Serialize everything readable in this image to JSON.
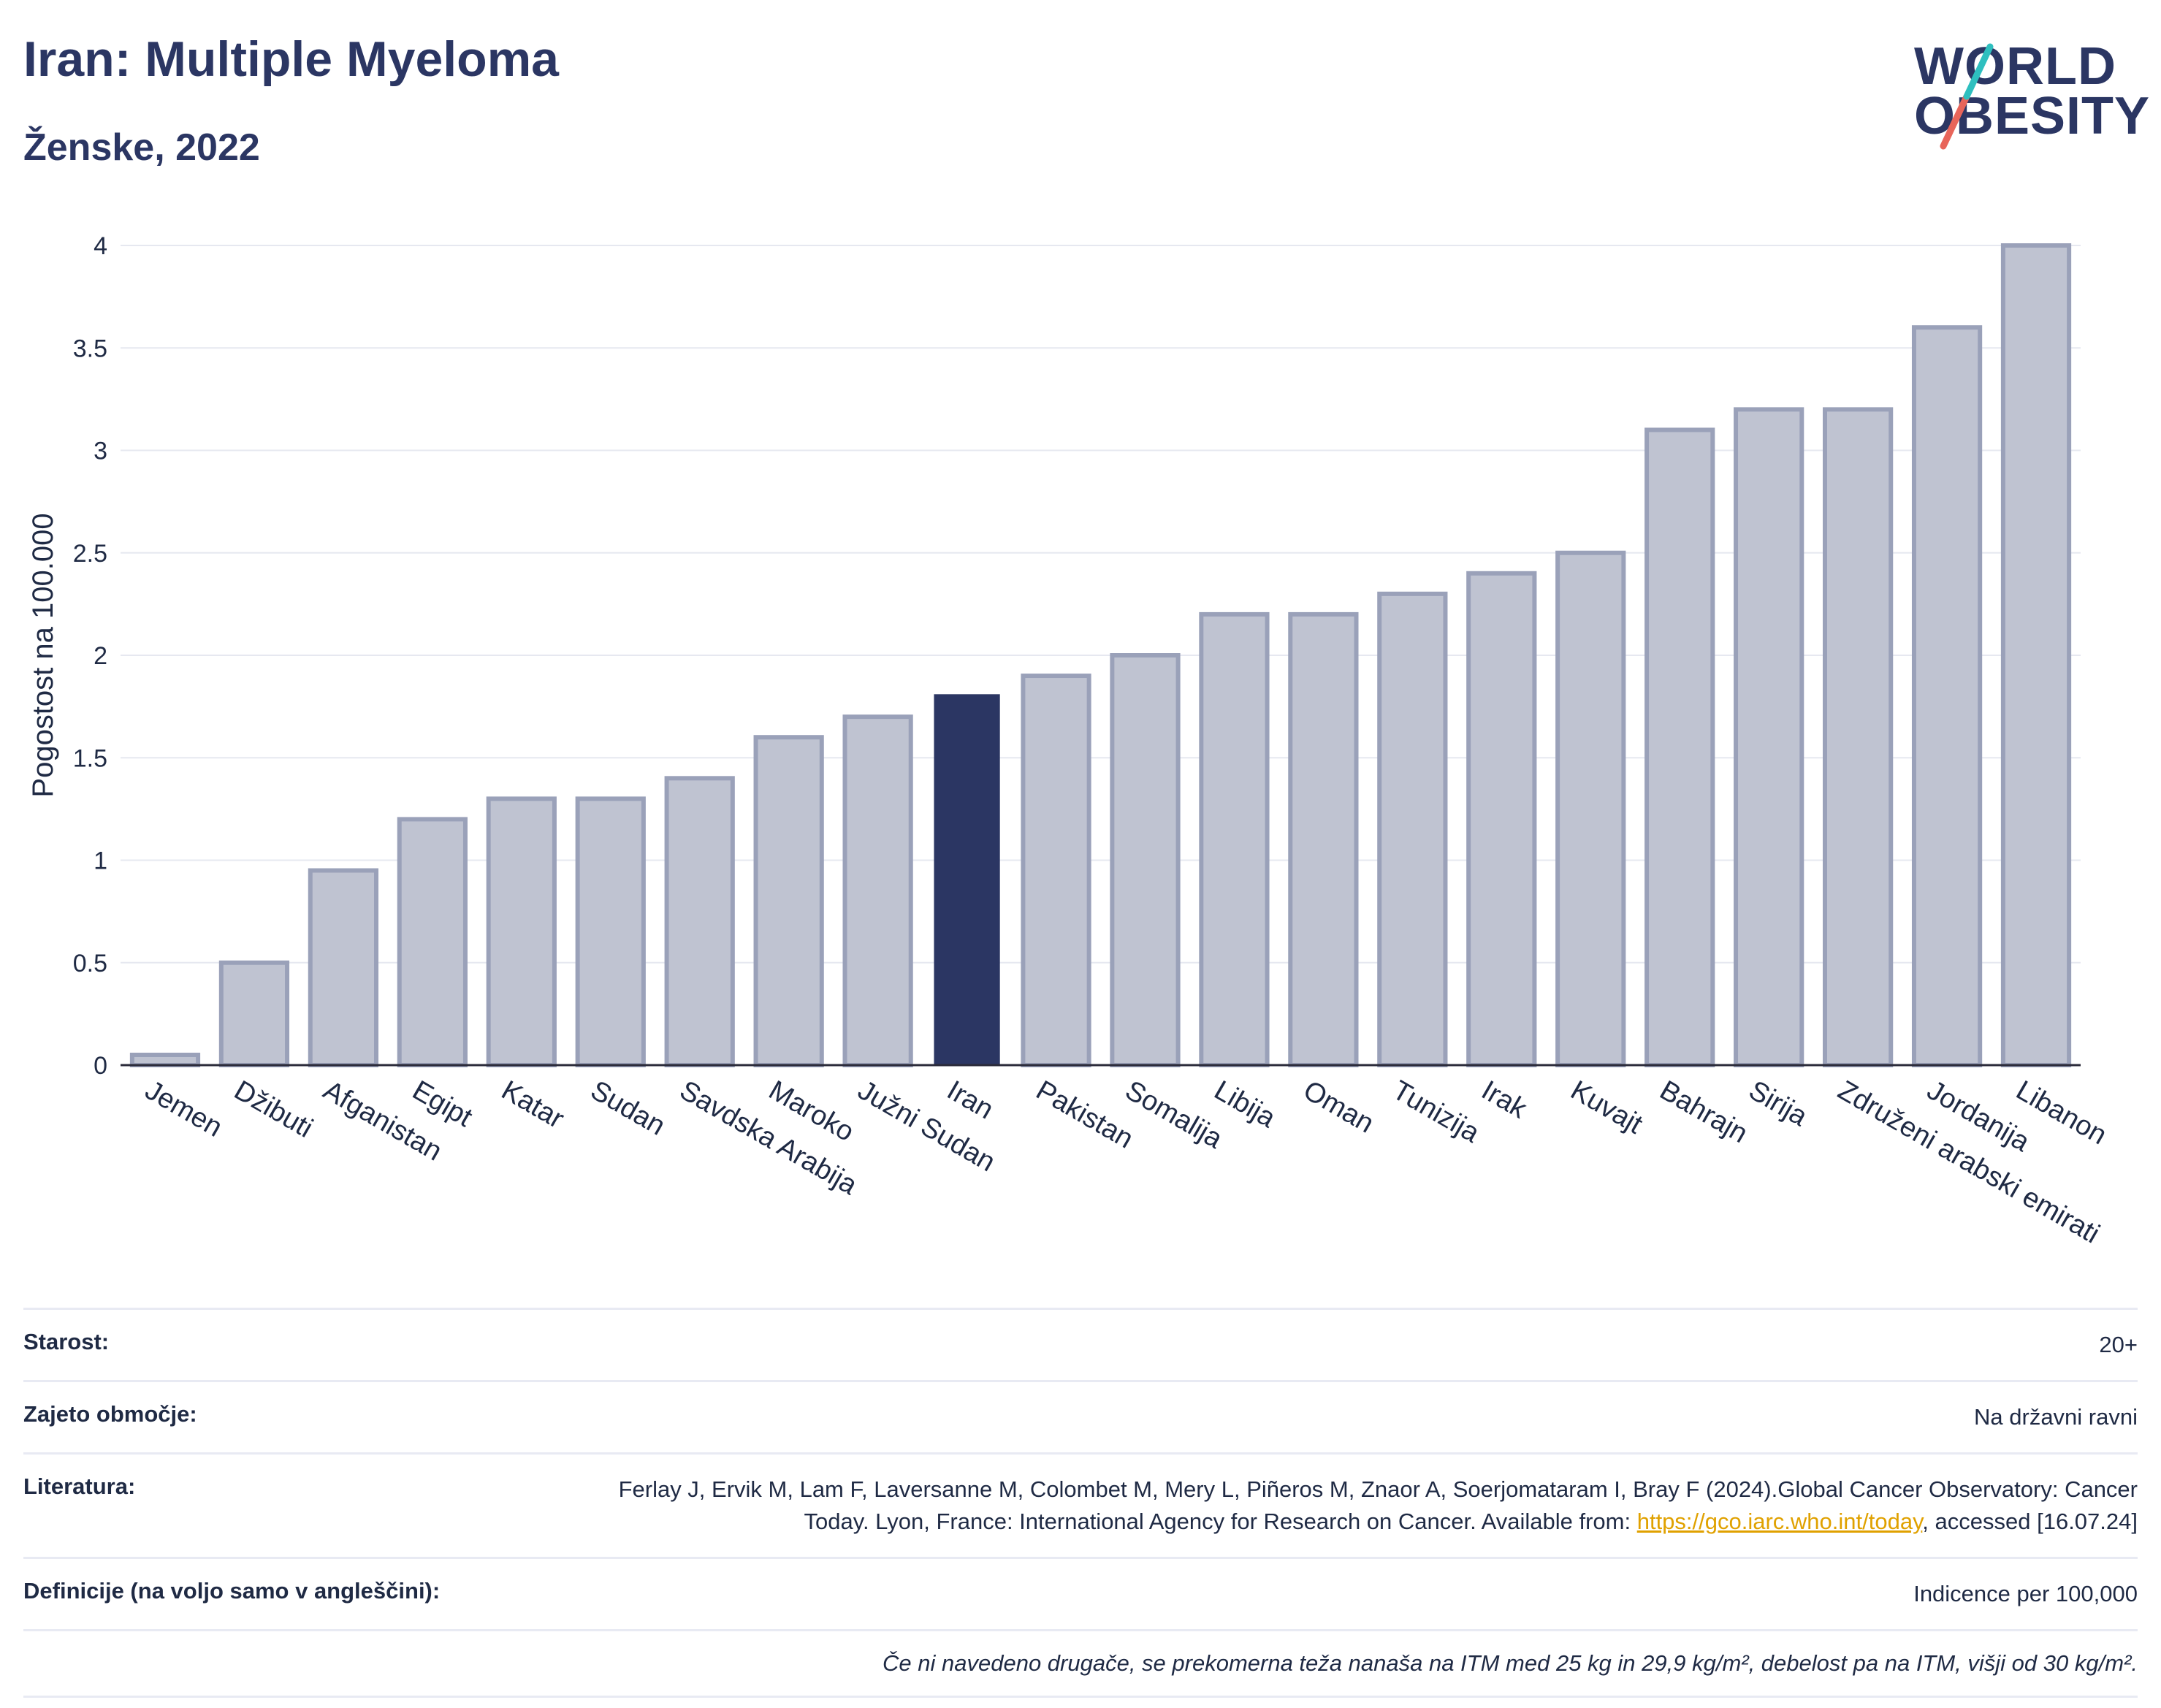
{
  "header": {
    "title": "Iran: Multiple Myeloma",
    "subtitle": "Ženske, 2022"
  },
  "logo": {
    "line1": "WORLD",
    "line2": "OBESITY",
    "colors": {
      "text": "#2b3663",
      "slash_top": "#2ebfbf",
      "slash_bottom": "#e8655a"
    }
  },
  "chart_data": {
    "type": "bar",
    "ylabel": "Pogostost na 100.000",
    "ylim": [
      0,
      4
    ],
    "yticks": [
      0,
      0.5,
      1,
      1.5,
      2,
      2.5,
      3,
      3.5,
      4
    ],
    "grid": true,
    "categories": [
      "Jemen",
      "Džibuti",
      "Afganistan",
      "Egipt",
      "Katar",
      "Sudan",
      "Savdska Arabija",
      "Maroko",
      "Južni Sudan",
      "Iran",
      "Pakistan",
      "Somalija",
      "Libija",
      "Oman",
      "Tunizija",
      "Irak",
      "Kuvajt",
      "Bahrajn",
      "Sirija",
      "Združeni arabski emirati",
      "Jordanija",
      "Libanon"
    ],
    "values": [
      0.05,
      0.5,
      0.95,
      1.2,
      1.3,
      1.3,
      1.4,
      1.6,
      1.7,
      1.81,
      1.9,
      2.0,
      2.2,
      2.2,
      2.3,
      2.4,
      2.5,
      3.1,
      3.2,
      3.2,
      3.6,
      4.0
    ],
    "highlight": "Iran",
    "colors": {
      "bar": "#bfc3d1",
      "bar_border": "#9aa1b9",
      "highlight": "#2b3663"
    }
  },
  "meta": {
    "rows": [
      {
        "label": "Starost:",
        "value": "20+"
      },
      {
        "label": "Zajeto območje:",
        "value": "Na državni ravni"
      },
      {
        "label": "Literatura:",
        "value_before": "Ferlay J, Ervik M, Lam F, Laversanne M, Colombet M, Mery L, Piñeros M, Znaor A, Soerjomataram I, Bray F (2024).Global Cancer Observatory: Cancer Today. Lyon, France: International Agency for Research on Cancer. Available from: ",
        "link": "https://gco.iarc.who.int/today",
        "value_after": ", accessed [16.07.24]"
      },
      {
        "label": "Definicije (na voljo samo v angleščini):",
        "value": "Indicence per 100,000"
      }
    ],
    "note": "Če ni navedeno drugače, se prekomerna teža nanaša na ITM med 25 kg in 29,9 kg/m², debelost pa na ITM, višji od 30 kg/m²."
  }
}
